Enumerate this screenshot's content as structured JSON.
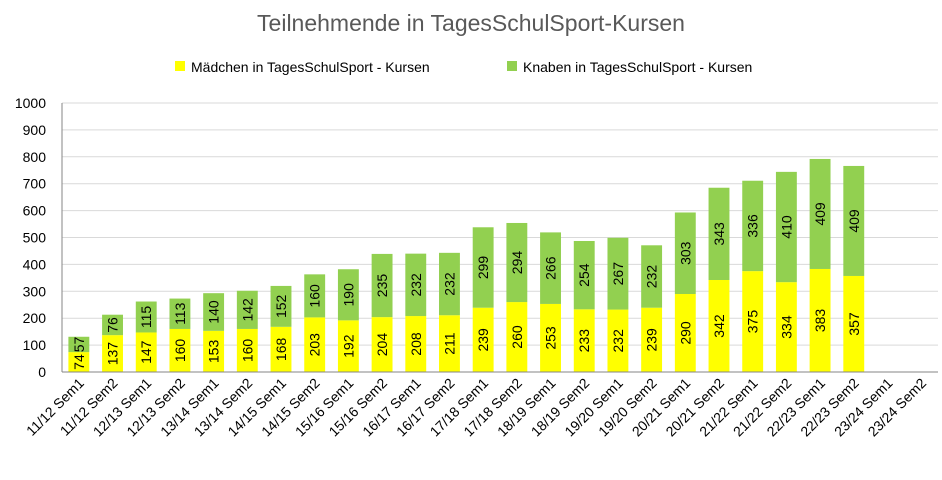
{
  "chart_data": {
    "type": "bar",
    "stacked": true,
    "title": "Teilnehmende in TagesSchulSport-Kursen",
    "xlabel": "",
    "ylabel": "",
    "ylim": [
      0,
      1000
    ],
    "yticks": [
      0,
      100,
      200,
      300,
      400,
      500,
      600,
      700,
      800,
      900,
      1000
    ],
    "grid": true,
    "legend": "top",
    "categories": [
      "11/12 Sem1",
      "11/12 Sem2",
      "12/13 Sem1",
      "12/13 Sem2",
      "13/14 Sem1",
      "13/14 Sem2",
      "14/15 Sem1",
      "14/15 Sem2",
      "15/16 Sem1",
      "15/16 Sem2",
      "16/17 Sem1",
      "16/17 Sem2",
      "17/18 Sem1",
      "17/18 Sem2",
      "18/19 Sem1",
      "18/19 Sem2",
      "19/20 Sem1",
      "19/20 Sem2",
      "20/21 Sem1",
      "20/21 Sem2",
      "21/22 Sem1",
      "21/22 Sem2",
      "22/23 Sem1",
      "22/23 Sem2",
      "23/24 Sem1",
      "23/24 Sem2"
    ],
    "series": [
      {
        "name": "Mädchen in TagesSchulSport - Kursen",
        "color": "#ffff00",
        "values": [
          74,
          137,
          147,
          160,
          153,
          160,
          168,
          203,
          192,
          204,
          208,
          211,
          239,
          260,
          253,
          233,
          232,
          239,
          290,
          342,
          375,
          334,
          383,
          357,
          null,
          null
        ],
        "labels": [
          "74",
          "137",
          "147",
          "160",
          "153",
          "160",
          "168",
          "203",
          "192",
          "204",
          "208",
          "211",
          "239",
          "260",
          "253",
          "233",
          "232",
          "239",
          "290",
          "342",
          "375",
          "334",
          "383",
          "357",
          "",
          ""
        ]
      },
      {
        "name": "Knaben in TagesSchulSport - Kursen",
        "color": "#92d050",
        "values": [
          57,
          76,
          115,
          113,
          140,
          142,
          152,
          160,
          190,
          235,
          232,
          232,
          299,
          294,
          266,
          254,
          267,
          232,
          303,
          343,
          336,
          410,
          409,
          409,
          null,
          null
        ],
        "labels": [
          "57",
          "76",
          "115",
          "113",
          "140",
          "142",
          "152",
          "160",
          "190",
          "235",
          "232",
          "232",
          "299",
          "294",
          "266",
          "254",
          "267",
          "232",
          "303",
          "343",
          "336",
          "410",
          "409",
          "409",
          "",
          ""
        ]
      }
    ]
  }
}
